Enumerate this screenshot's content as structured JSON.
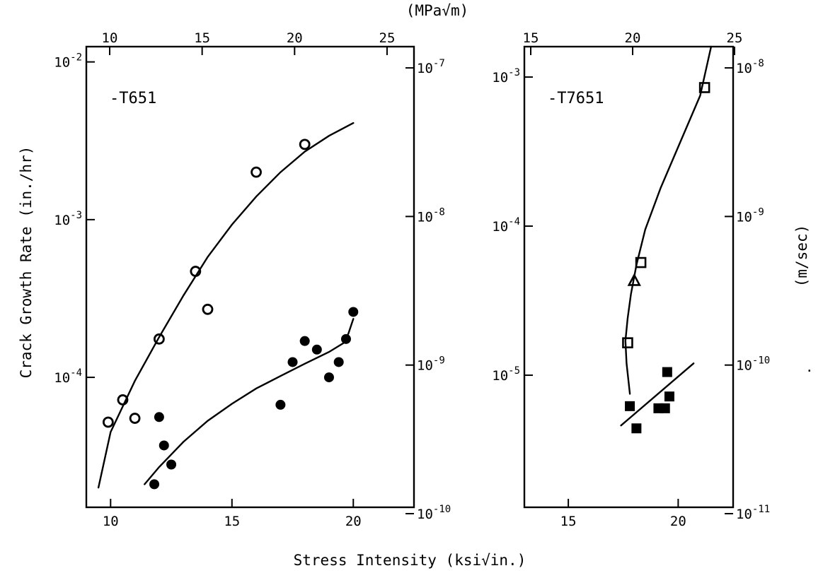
{
  "figure": {
    "top_unit_label": "(MPa√m)",
    "x_axis_title": "Stress Intensity (ksi√in.)",
    "y_axis_title_left": "Crack Growth Rate (in./hr)",
    "y_axis_title_right": "(m/sec)",
    "stray_mark": "."
  },
  "chart_data": [
    {
      "type": "scatter",
      "panel_label": "-T651",
      "xlabel": "Stress Intensity (ksi√in.)",
      "ylabel": "Crack Growth Rate (in./hr)",
      "xlim": [
        9,
        22.5
      ],
      "ylim": [
        1.5e-05,
        0.0125
      ],
      "yscale": "log",
      "x_ticks": [
        10,
        15,
        20
      ],
      "x_tick_labels": [
        "10",
        "15",
        "20"
      ],
      "y_ticks": [
        0.0001,
        0.001,
        0.01
      ],
      "y_tick_labels": [
        [
          "10",
          "-4"
        ],
        [
          "10",
          "-3"
        ],
        [
          "10",
          "-2"
        ]
      ],
      "top_axis": {
        "label": "(MPa√m)",
        "ticks": [
          10,
          15,
          20,
          25
        ],
        "tick_labels": [
          "10",
          "15",
          "20",
          "25"
        ]
      },
      "right_axis": {
        "label": "(m/sec)",
        "ticks": [
          1e-10,
          1e-09,
          1e-08,
          1e-07
        ],
        "tick_labels": [
          [
            "10",
            "-10"
          ],
          [
            "10",
            "-9"
          ],
          [
            "10",
            "-8"
          ],
          [
            "10",
            "-7"
          ]
        ]
      },
      "series": [
        {
          "marker": "open-circle",
          "points": [
            [
              9.9,
              5.2e-05
            ],
            [
              10.5,
              7.2e-05
            ],
            [
              11.0,
              5.5e-05
            ],
            [
              12.0,
              0.000175
            ],
            [
              13.5,
              0.00047
            ],
            [
              14.0,
              0.00027
            ],
            [
              16.0,
              0.002
            ],
            [
              18.0,
              0.003
            ]
          ],
          "fit_curve": [
            [
              9.5,
              2e-05
            ],
            [
              10.0,
              4.5e-05
            ],
            [
              11.0,
              9.5e-05
            ],
            [
              12.0,
              0.00018
            ],
            [
              13.0,
              0.00033
            ],
            [
              14.0,
              0.00058
            ],
            [
              15.0,
              0.00093
            ],
            [
              16.0,
              0.0014
            ],
            [
              17.0,
              0.002
            ],
            [
              18.0,
              0.0027
            ],
            [
              19.0,
              0.0034
            ],
            [
              20.0,
              0.0041
            ]
          ]
        },
        {
          "marker": "filled-circle",
          "points": [
            [
              11.8,
              2.1e-05
            ],
            [
              12.0,
              5.6e-05
            ],
            [
              12.2,
              3.7e-05
            ],
            [
              12.5,
              2.8e-05
            ],
            [
              17.0,
              6.7e-05
            ],
            [
              17.5,
              0.000125
            ],
            [
              18.0,
              0.00017
            ],
            [
              18.5,
              0.00015
            ],
            [
              19.0,
              0.0001
            ],
            [
              19.4,
              0.000125
            ],
            [
              19.7,
              0.000175
            ],
            [
              20.0,
              0.00026
            ]
          ],
          "fit_curve": [
            [
              11.4,
              2.1e-05
            ],
            [
              12.0,
              2.7e-05
            ],
            [
              13.0,
              3.9e-05
            ],
            [
              14.0,
              5.3e-05
            ],
            [
              15.0,
              6.8e-05
            ],
            [
              16.0,
              8.5e-05
            ],
            [
              17.0,
              0.000102
            ],
            [
              18.0,
              0.000122
            ],
            [
              19.0,
              0.000145
            ],
            [
              19.6,
              0.000165
            ],
            [
              19.8,
              0.00019
            ],
            [
              20.0,
              0.000235
            ]
          ]
        }
      ]
    },
    {
      "type": "scatter",
      "panel_label": "-T7651",
      "xlabel": "Stress Intensity (ksi√in.)",
      "ylabel": "Crack Growth Rate (in./hr)",
      "xlim": [
        13,
        22.5
      ],
      "ylim": [
        1.3e-06,
        0.0016
      ],
      "yscale": "log",
      "x_ticks": [
        15,
        20
      ],
      "x_tick_labels": [
        "15",
        "20"
      ],
      "y_ticks": [
        1e-05,
        0.0001,
        0.001
      ],
      "y_tick_labels": [
        [
          "10",
          "-5"
        ],
        [
          "10",
          "-4"
        ],
        [
          "10",
          "-3"
        ]
      ],
      "top_axis": {
        "label": "(MPa√m)",
        "ticks": [
          15,
          20,
          25
        ],
        "tick_labels": [
          "15",
          "20",
          "25"
        ]
      },
      "right_axis": {
        "label": "(m/sec)",
        "ticks": [
          1e-11,
          1e-10,
          1e-09,
          1e-08
        ],
        "tick_labels": [
          [
            "10",
            "-11"
          ],
          [
            "10",
            "-10"
          ],
          [
            "10",
            "-9"
          ],
          [
            "10",
            "-8"
          ]
        ]
      },
      "series": [
        {
          "marker": "open-square",
          "points": [
            [
              17.7,
              1.65e-05
            ],
            [
              18.3,
              5.7e-05
            ],
            [
              21.2,
              0.00085
            ]
          ],
          "fit_curve": [
            [
              17.8,
              7.5e-06
            ],
            [
              17.65,
              1.2e-05
            ],
            [
              17.6,
              1.7e-05
            ],
            [
              17.7,
              2.4e-05
            ],
            [
              17.85,
              3.5e-05
            ],
            [
              18.1,
              5.5e-05
            ],
            [
              18.5,
              9.5e-05
            ],
            [
              19.2,
              0.00018
            ],
            [
              20.0,
              0.00034
            ],
            [
              21.0,
              0.00075
            ],
            [
              21.5,
              0.0016
            ]
          ]
        },
        {
          "marker": "open-triangle",
          "points": [
            [
              18.0,
              4.3e-05
            ]
          ]
        },
        {
          "marker": "filled-square",
          "points": [
            [
              17.8,
              6.2e-06
            ],
            [
              18.1,
              4.4e-06
            ],
            [
              19.1,
              6e-06
            ],
            [
              19.4,
              6e-06
            ],
            [
              19.5,
              1.05e-05
            ],
            [
              19.6,
              7.2e-06
            ]
          ],
          "fit_curve": [
            [
              17.4,
              4.6e-06
            ],
            [
              20.7,
              1.2e-05
            ]
          ]
        }
      ]
    }
  ]
}
